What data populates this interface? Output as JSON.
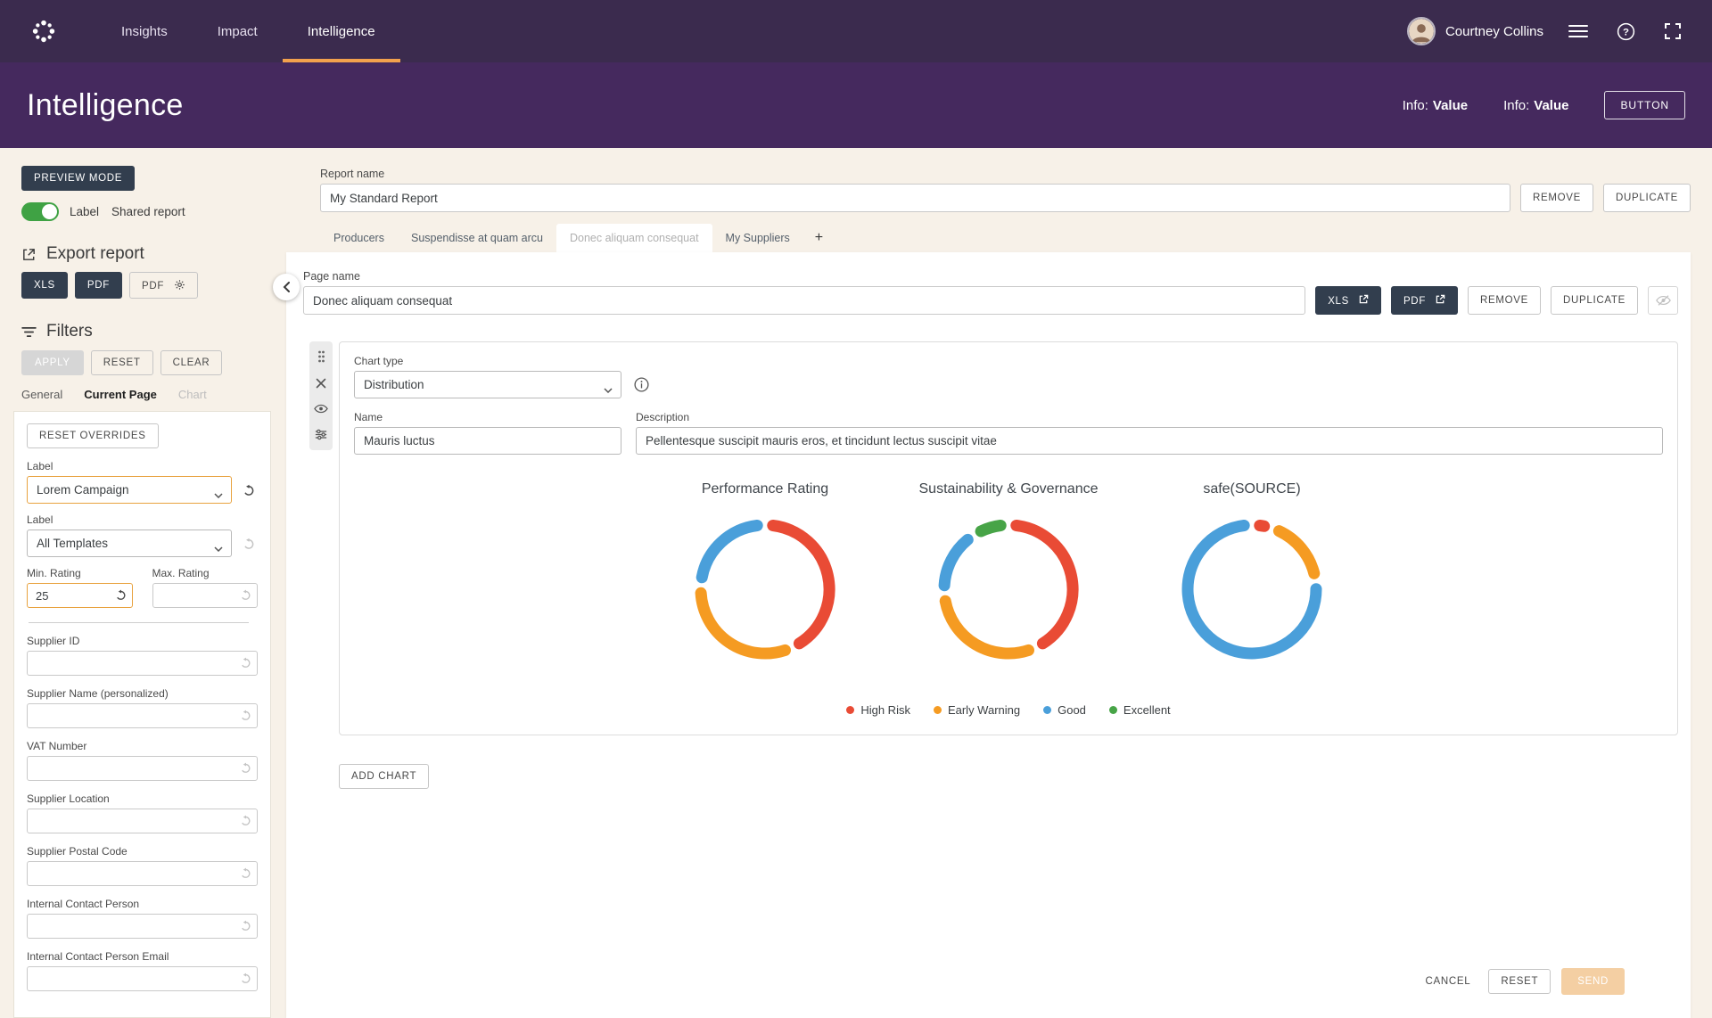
{
  "colors": {
    "accent_orange": "#F2A14D",
    "topnav_bg": "#3B2B4E",
    "header_bg": "#45295E",
    "navy_button": "#323E4E",
    "page_bg": "#F7F1E8",
    "toggle_on_green": "#3FA244",
    "send_disabled_bg": "#F4CFA3"
  },
  "icons": [
    "logo-dots-icon",
    "hamburger-icon",
    "help-icon",
    "fullscreen-icon",
    "share-export-icon",
    "gear-icon",
    "filter-icon",
    "undo-icon",
    "chevron-down-icon",
    "chevron-left-icon",
    "drag-handle-icon",
    "close-icon",
    "eye-icon",
    "eye-off-icon",
    "sliders-icon",
    "info-icon",
    "external-link-icon"
  ],
  "topnav": {
    "nav": [
      "Insights",
      "Impact",
      "Intelligence"
    ],
    "active_nav": "Intelligence",
    "user_name": "Courtney Collins"
  },
  "header": {
    "title": "Intelligence",
    "infos": [
      {
        "label": "Info:",
        "value": "Value"
      },
      {
        "label": "Info:",
        "value": "Value"
      }
    ],
    "button": "BUTTON"
  },
  "sidebar": {
    "preview_mode": "PREVIEW MODE",
    "toggle_label": "Label",
    "shared_report_label": "Shared report",
    "export_title": "Export report",
    "xls": "XLS",
    "pdf": "PDF",
    "pdf_settings": "PDF",
    "filters_title": "Filters",
    "apply": "APPLY",
    "reset": "RESET",
    "clear": "CLEAR",
    "tabs": [
      "General",
      "Current Page",
      "Chart"
    ],
    "active_tab": "Current Page",
    "panel": {
      "reset_overrides": "RESET OVERRIDES",
      "select_fields": [
        {
          "label": "Label",
          "value": "Lorem Campaign",
          "highlighted": true
        },
        {
          "label": "Label",
          "value": "All Templates",
          "highlighted": false
        }
      ],
      "min_rating": {
        "label": "Min. Rating",
        "value": "25"
      },
      "max_rating": {
        "label": "Max. Rating",
        "value": ""
      },
      "text_fields": [
        {
          "label": "Supplier ID",
          "value": ""
        },
        {
          "label": "Supplier Name (personalized)",
          "value": ""
        },
        {
          "label": "VAT Number",
          "value": ""
        },
        {
          "label": "Supplier Location",
          "value": ""
        },
        {
          "label": "Supplier Postal Code",
          "value": ""
        },
        {
          "label": "Internal Contact Person",
          "value": ""
        },
        {
          "label": "Internal Contact Person Email",
          "value": ""
        }
      ]
    }
  },
  "main": {
    "report_name_label": "Report name",
    "report_name_value": "My Standard Report",
    "remove": "REMOVE",
    "duplicate": "DUPLICATE",
    "tabs": [
      "Producers",
      "Suspendisse at quam arcu",
      "Donec aliquam consequat",
      "My Suppliers"
    ],
    "active_tab_index": 2,
    "add_tab": "+",
    "page": {
      "page_name_label": "Page name",
      "page_name_value": "Donec aliquam consequat",
      "xls": "XLS",
      "pdf": "PDF",
      "remove": "REMOVE",
      "duplicate": "DUPLICATE"
    },
    "chart_editor": {
      "chart_type_label": "Chart type",
      "chart_type_value": "Distribution",
      "name_label": "Name",
      "name_value": "Mauris luctus",
      "description_label": "Description",
      "description_value": "Pellentesque suscipit mauris eros, et tincidunt lectus suscipit vitae"
    },
    "add_chart": "ADD CHART",
    "footer": {
      "cancel": "CANCEL",
      "reset": "RESET",
      "send": "SEND"
    }
  },
  "chart_data": {
    "type": "donut",
    "legend_position": "bottom",
    "charts": [
      {
        "title": "Performance Rating",
        "segments": [
          {
            "label": "High Risk",
            "pct": 43
          },
          {
            "label": "Early Warning",
            "pct": 33
          },
          {
            "label": "Good",
            "pct": 24
          },
          {
            "label": "Excellent",
            "pct": 0
          }
        ]
      },
      {
        "title": "Sustainability & Governance",
        "segments": [
          {
            "label": "High Risk",
            "pct": 43
          },
          {
            "label": "Early Warning",
            "pct": 31
          },
          {
            "label": "Good",
            "pct": 17
          },
          {
            "label": "Excellent",
            "pct": 9
          }
        ]
      },
      {
        "title": "safe(SOURCE)",
        "segments": [
          {
            "label": "High Risk",
            "pct": 5
          },
          {
            "label": "Early Warning",
            "pct": 18
          },
          {
            "label": "Good",
            "pct": 77
          },
          {
            "label": "Excellent",
            "pct": 0
          }
        ]
      }
    ],
    "legend": [
      {
        "label": "High Risk",
        "color": "#E94B35"
      },
      {
        "label": "Early Warning",
        "color": "#F59B22"
      },
      {
        "label": "Good",
        "color": "#4A9FDA"
      },
      {
        "label": "Excellent",
        "color": "#47A447"
      }
    ]
  }
}
